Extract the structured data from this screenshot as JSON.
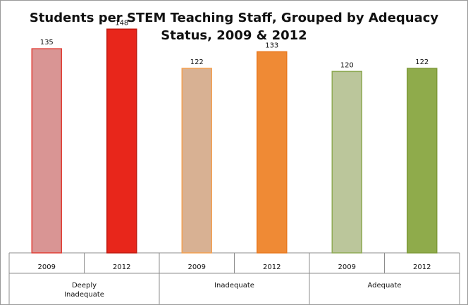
{
  "chart_data": {
    "type": "bar",
    "title": "Students per STEM Teaching Staff, Grouped by Adequacy Status, 2009 & 2012",
    "xlabel": "",
    "ylabel": "",
    "ylim": [
      0,
      150
    ],
    "grid": false,
    "legend": "none",
    "groups": [
      {
        "name": "Deeply Inadequate",
        "bars": [
          {
            "year": "2009",
            "value": 135,
            "fill": "#d99594",
            "stroke": "#e03e35"
          },
          {
            "year": "2012",
            "value": 148,
            "fill": "#e8261b",
            "stroke": "#c0180f"
          }
        ]
      },
      {
        "name": "Inadequate",
        "bars": [
          {
            "year": "2009",
            "value": 122,
            "fill": "#d8b193",
            "stroke": "#f3a050"
          },
          {
            "year": "2012",
            "value": 133,
            "fill": "#ef8a35",
            "stroke": "#e9791f"
          }
        ]
      },
      {
        "name": "Adequate",
        "bars": [
          {
            "year": "2009",
            "value": 120,
            "fill": "#bbc69b",
            "stroke": "#8faa55"
          },
          {
            "year": "2012",
            "value": 122,
            "fill": "#8fab4b",
            "stroke": "#7d9a38"
          }
        ]
      }
    ]
  }
}
